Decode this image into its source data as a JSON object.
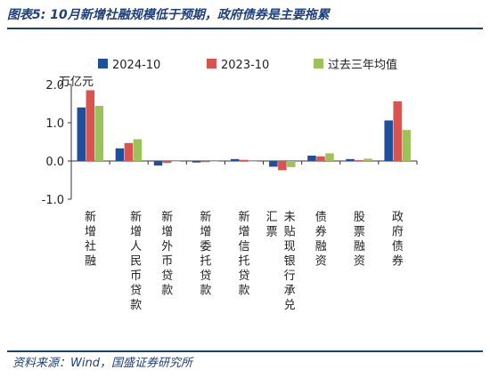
{
  "header": {
    "title": "图表5:  10月新增社融规模低于预期，政府债券是主要拖累"
  },
  "footer": {
    "source": "资料来源：Wind，国盛证券研究所"
  },
  "chart_data": {
    "type": "bar",
    "ylabel": "万亿元",
    "ylim": [
      -1.0,
      2.0
    ],
    "yticks": [
      2.0,
      1.0,
      0.0,
      -1.0
    ],
    "ytick_labels": [
      "2.0",
      "1.0",
      "0.0",
      "-1.0"
    ],
    "legend_position": "top",
    "categories": [
      "新增社融",
      "新增人民币贷款",
      "新增外币贷款",
      "新增委托贷款",
      "新增信托贷款",
      "未贴现银行承兑汇票",
      "债券融资",
      "股票融资",
      "政府债券"
    ],
    "series": [
      {
        "name": "2024-10",
        "color": "#1f4e9c",
        "values": [
          1.4,
          0.33,
          -0.12,
          -0.04,
          0.05,
          -0.15,
          0.14,
          0.05,
          1.06
        ]
      },
      {
        "name": "2023-10",
        "color": "#d9534f",
        "values": [
          1.85,
          0.47,
          -0.05,
          -0.03,
          0.03,
          -0.24,
          0.12,
          0.02,
          1.56
        ]
      },
      {
        "name": "过去三年均值",
        "color": "#9bc25b",
        "values": [
          1.44,
          0.57,
          -0.01,
          0.0,
          0.0,
          -0.16,
          0.2,
          0.06,
          0.81
        ]
      }
    ]
  }
}
